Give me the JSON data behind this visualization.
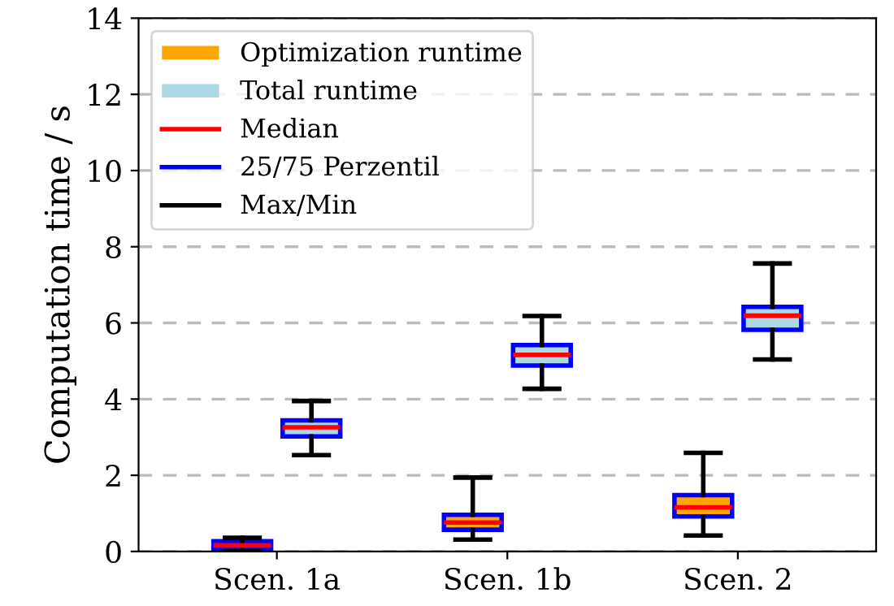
{
  "chart_data": {
    "type": "box",
    "ylabel": "Computation time / s",
    "categories": [
      "Scen. 1a",
      "Scen. 1b",
      "Scen. 2"
    ],
    "series": [
      {
        "name": "Optimization runtime",
        "color": "#ffa500",
        "boxes": [
          {
            "low": 0.02,
            "q1": 0.05,
            "median": 0.16,
            "q3": 0.27,
            "high": 0.36
          },
          {
            "low": 0.31,
            "q1": 0.57,
            "median": 0.76,
            "q3": 0.96,
            "high": 1.94
          },
          {
            "low": 0.42,
            "q1": 0.92,
            "median": 1.16,
            "q3": 1.48,
            "high": 2.59
          }
        ]
      },
      {
        "name": "Total runtime",
        "color": "#add8e6",
        "boxes": [
          {
            "low": 2.53,
            "q1": 3.02,
            "median": 3.26,
            "q3": 3.44,
            "high": 3.95
          },
          {
            "low": 4.27,
            "q1": 4.88,
            "median": 5.16,
            "q3": 5.42,
            "high": 6.18
          },
          {
            "low": 5.04,
            "q1": 5.82,
            "median": 6.19,
            "q3": 6.42,
            "high": 7.56
          }
        ]
      }
    ],
    "annotations": [
      "Median",
      "25/75 Perzentil",
      "Max/Min"
    ],
    "ylim": [
      0,
      14
    ],
    "yticks": [
      0,
      2,
      4,
      6,
      8,
      10,
      12,
      14
    ],
    "grid": "y",
    "legend": "top left"
  }
}
